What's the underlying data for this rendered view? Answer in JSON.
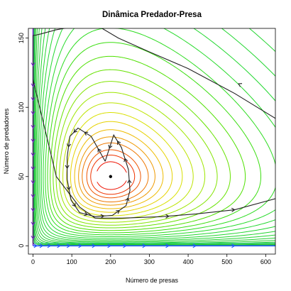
{
  "chart_data": {
    "type": "line",
    "title": "Dinâmica Predador-Presa",
    "xlabel": "Número de presas",
    "ylabel": "Número de predadores",
    "xlim": [
      -12,
      625
    ],
    "ylim": [
      -6,
      157
    ],
    "x_ticks": [
      0,
      100,
      200,
      300,
      400,
      500,
      600
    ],
    "y_ticks": [
      0,
      50,
      100,
      150
    ],
    "equilibrium": {
      "x": 200,
      "y": 50
    },
    "colors": {
      "contour_outer": "#22dd22",
      "contour_mid": "#e6e600",
      "contour_inner": "#ee2200",
      "trajectory": "#222222",
      "y_axis_line": "#7722cc",
      "x_axis_line": "#2255ff"
    },
    "contours": [
      {
        "c": 0.02,
        "color": "#ee1100"
      },
      {
        "c": 0.04,
        "color": "#ee3300"
      },
      {
        "c": 0.06,
        "color": "#ee5500"
      },
      {
        "c": 0.09,
        "color": "#ee7700"
      },
      {
        "c": 0.12,
        "color": "#ee9900"
      },
      {
        "c": 0.16,
        "color": "#eebb00"
      },
      {
        "c": 0.21,
        "color": "#e6d200"
      },
      {
        "c": 0.27,
        "color": "#d8e000"
      },
      {
        "c": 0.34,
        "color": "#bce400"
      },
      {
        "c": 0.42,
        "color": "#9ee600"
      },
      {
        "c": 0.51,
        "color": "#82e400"
      },
      {
        "c": 0.61,
        "color": "#66e200"
      },
      {
        "c": 0.73,
        "color": "#4ee000"
      },
      {
        "c": 0.86,
        "color": "#3ade10"
      },
      {
        "c": 1.0,
        "color": "#2ddc20"
      },
      {
        "c": 1.16,
        "color": "#26da2a"
      },
      {
        "c": 1.34,
        "color": "#22d830"
      },
      {
        "c": 1.54,
        "color": "#22d630"
      },
      {
        "c": 1.76,
        "color": "#22d430"
      },
      {
        "c": 2.0,
        "color": "#22d230"
      },
      {
        "c": 2.28,
        "color": "#22d030"
      },
      {
        "c": 2.6,
        "color": "#22ce30"
      },
      {
        "c": 2.96,
        "color": "#22cc30"
      },
      {
        "c": 3.36,
        "color": "#22ca30"
      },
      {
        "c": 3.8,
        "color": "#22c830"
      },
      {
        "c": 4.3,
        "color": "#22c630"
      },
      {
        "c": 4.9,
        "color": "#22c430"
      }
    ],
    "trajectory_inner": {
      "x": [
        186,
        150,
        116,
        95,
        88,
        88,
        98,
        120,
        160,
        205,
        240,
        250,
        246,
        228,
        208,
        186
      ],
      "y": [
        61,
        79,
        85,
        79,
        64,
        48,
        33,
        24,
        21,
        22,
        29,
        40,
        55,
        71,
        80,
        61
      ]
    },
    "trajectory_outer": {
      "x": [
        0,
        5,
        20,
        60,
        100,
        160,
        220,
        300,
        400,
        520,
        625
      ],
      "y": [
        152,
        152,
        153,
        156,
        158,
        160,
        150,
        140,
        128,
        110,
        92
      ]
    },
    "trajectory_outer_lower": {
      "x": [
        0,
        60,
        120,
        160,
        230,
        330,
        420,
        520,
        625
      ],
      "y": [
        120,
        50,
        28,
        20,
        20,
        21,
        23,
        26,
        34
      ]
    },
    "arrows_y_axis": [
      5,
      15,
      25,
      35,
      45,
      55,
      65,
      75,
      85,
      95,
      105,
      115,
      130
    ],
    "arrows_x_axis": [
      10,
      25,
      45,
      70,
      95,
      125,
      160,
      200,
      240,
      290,
      350,
      420,
      520
    ]
  }
}
